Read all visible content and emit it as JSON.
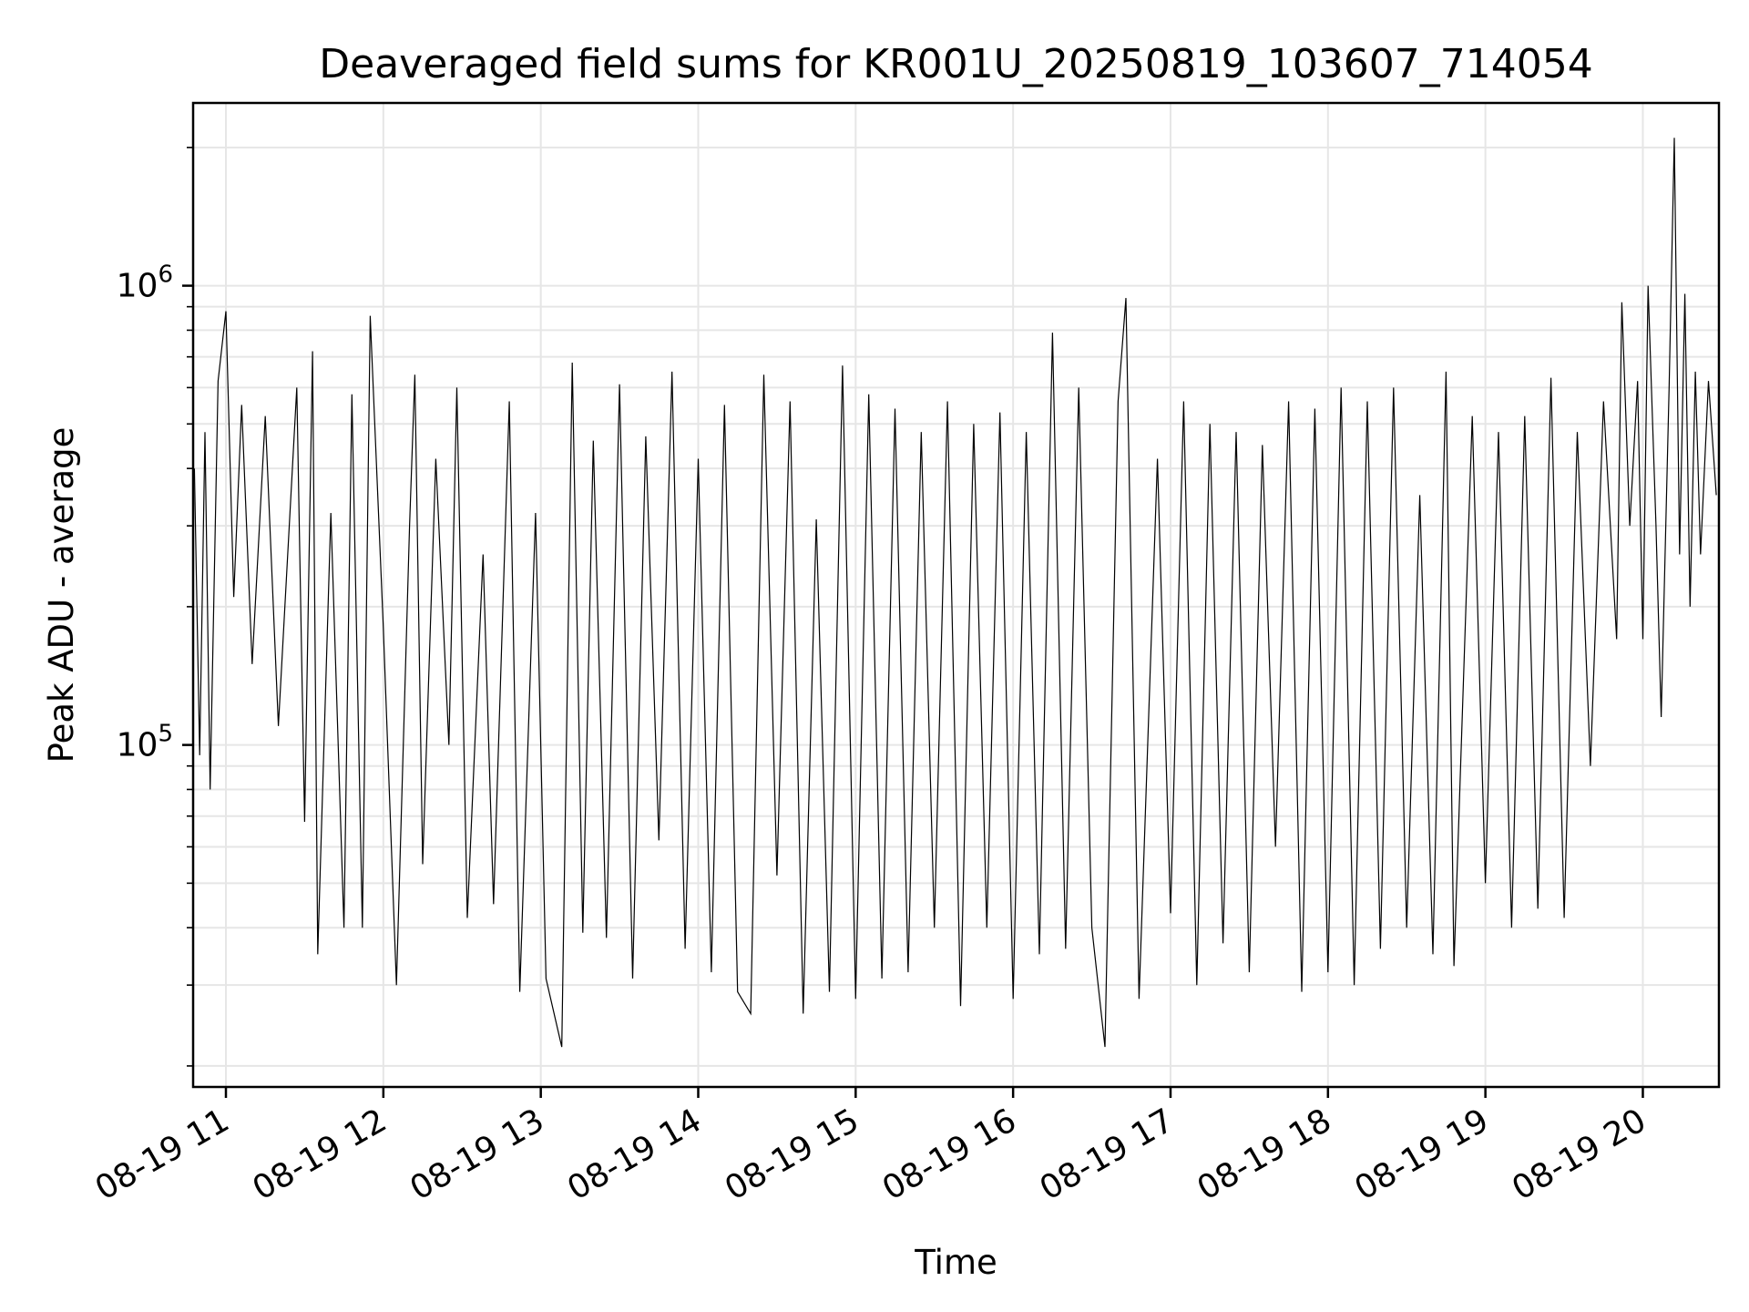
{
  "chart_data": {
    "type": "line",
    "title": "Deaveraged field sums for KR001U_20250819_103607_714054",
    "xlabel": "Time",
    "ylabel": "Peak ADU - average",
    "xscale": "time",
    "yscale": "log",
    "xlim": [
      "2025-08-19T10:47:30",
      "2025-08-19T20:29:00"
    ],
    "ylim": [
      18000,
      2500000
    ],
    "grid": true,
    "legend": "none",
    "line_color": "#000000",
    "x_ticks": [
      {
        "value": "2025-08-19T11:00:00",
        "label": "08-19 11"
      },
      {
        "value": "2025-08-19T12:00:00",
        "label": "08-19 12"
      },
      {
        "value": "2025-08-19T13:00:00",
        "label": "08-19 13"
      },
      {
        "value": "2025-08-19T14:00:00",
        "label": "08-19 14"
      },
      {
        "value": "2025-08-19T15:00:00",
        "label": "08-19 15"
      },
      {
        "value": "2025-08-19T16:00:00",
        "label": "08-19 16"
      },
      {
        "value": "2025-08-19T17:00:00",
        "label": "08-19 17"
      },
      {
        "value": "2025-08-19T18:00:00",
        "label": "08-19 18"
      },
      {
        "value": "2025-08-19T19:00:00",
        "label": "08-19 19"
      },
      {
        "value": "2025-08-19T20:00:00",
        "label": "08-19 20"
      }
    ],
    "y_ticks": [
      {
        "value": 100000,
        "base": "10",
        "exp": "5"
      },
      {
        "value": 1000000,
        "base": "10",
        "exp": "6"
      }
    ],
    "y_minor_ticks": [
      20000,
      30000,
      40000,
      50000,
      60000,
      70000,
      80000,
      90000,
      200000,
      300000,
      400000,
      500000,
      600000,
      700000,
      800000,
      900000,
      2000000
    ],
    "series": [
      {
        "points": [
          [
            "2025-08-19T10:48:00",
            400000
          ],
          [
            "2025-08-19T10:50:00",
            95000
          ],
          [
            "2025-08-19T10:52:00",
            480000
          ],
          [
            "2025-08-19T10:54:00",
            80000
          ],
          [
            "2025-08-19T10:57:00",
            620000
          ],
          [
            "2025-08-19T11:00:00",
            880000
          ],
          [
            "2025-08-19T11:03:00",
            210000
          ],
          [
            "2025-08-19T11:06:00",
            550000
          ],
          [
            "2025-08-19T11:10:00",
            150000
          ],
          [
            "2025-08-19T11:15:00",
            520000
          ],
          [
            "2025-08-19T11:20:00",
            110000
          ],
          [
            "2025-08-19T11:27:00",
            600000
          ],
          [
            "2025-08-19T11:30:00",
            68000
          ],
          [
            "2025-08-19T11:33:00",
            720000
          ],
          [
            "2025-08-19T11:35:00",
            35000
          ],
          [
            "2025-08-19T11:40:00",
            320000
          ],
          [
            "2025-08-19T11:45:00",
            40000
          ],
          [
            "2025-08-19T11:48:00",
            580000
          ],
          [
            "2025-08-19T11:52:00",
            40000
          ],
          [
            "2025-08-19T11:55:00",
            860000
          ],
          [
            "2025-08-19T12:00:00",
            180000
          ],
          [
            "2025-08-19T12:05:00",
            30000
          ],
          [
            "2025-08-19T12:10:00",
            300000
          ],
          [
            "2025-08-19T12:12:00",
            640000
          ],
          [
            "2025-08-19T12:15:00",
            55000
          ],
          [
            "2025-08-19T12:20:00",
            420000
          ],
          [
            "2025-08-19T12:25:00",
            100000
          ],
          [
            "2025-08-19T12:28:00",
            600000
          ],
          [
            "2025-08-19T12:32:00",
            42000
          ],
          [
            "2025-08-19T12:38:00",
            260000
          ],
          [
            "2025-08-19T12:42:00",
            45000
          ],
          [
            "2025-08-19T12:48:00",
            560000
          ],
          [
            "2025-08-19T12:52:00",
            29000
          ],
          [
            "2025-08-19T12:58:00",
            320000
          ],
          [
            "2025-08-19T13:02:00",
            31000
          ],
          [
            "2025-08-19T13:08:00",
            22000
          ],
          [
            "2025-08-19T13:12:00",
            680000
          ],
          [
            "2025-08-19T13:16:00",
            39000
          ],
          [
            "2025-08-19T13:20:00",
            460000
          ],
          [
            "2025-08-19T13:25:00",
            38000
          ],
          [
            "2025-08-19T13:30:00",
            610000
          ],
          [
            "2025-08-19T13:35:00",
            31000
          ],
          [
            "2025-08-19T13:40:00",
            470000
          ],
          [
            "2025-08-19T13:45:00",
            62000
          ],
          [
            "2025-08-19T13:50:00",
            650000
          ],
          [
            "2025-08-19T13:55:00",
            36000
          ],
          [
            "2025-08-19T14:00:00",
            420000
          ],
          [
            "2025-08-19T14:05:00",
            32000
          ],
          [
            "2025-08-19T14:10:00",
            550000
          ],
          [
            "2025-08-19T14:15:00",
            29000
          ],
          [
            "2025-08-19T14:20:00",
            26000
          ],
          [
            "2025-08-19T14:25:00",
            640000
          ],
          [
            "2025-08-19T14:30:00",
            52000
          ],
          [
            "2025-08-19T14:35:00",
            560000
          ],
          [
            "2025-08-19T14:40:00",
            26000
          ],
          [
            "2025-08-19T14:45:00",
            310000
          ],
          [
            "2025-08-19T14:50:00",
            29000
          ],
          [
            "2025-08-19T14:55:00",
            670000
          ],
          [
            "2025-08-19T15:00:00",
            28000
          ],
          [
            "2025-08-19T15:05:00",
            580000
          ],
          [
            "2025-08-19T15:10:00",
            31000
          ],
          [
            "2025-08-19T15:15:00",
            540000
          ],
          [
            "2025-08-19T15:20:00",
            32000
          ],
          [
            "2025-08-19T15:25:00",
            480000
          ],
          [
            "2025-08-19T15:30:00",
            40000
          ],
          [
            "2025-08-19T15:35:00",
            560000
          ],
          [
            "2025-08-19T15:40:00",
            27000
          ],
          [
            "2025-08-19T15:45:00",
            500000
          ],
          [
            "2025-08-19T15:50:00",
            40000
          ],
          [
            "2025-08-19T15:55:00",
            530000
          ],
          [
            "2025-08-19T16:00:00",
            28000
          ],
          [
            "2025-08-19T16:05:00",
            480000
          ],
          [
            "2025-08-19T16:10:00",
            35000
          ],
          [
            "2025-08-19T16:15:00",
            790000
          ],
          [
            "2025-08-19T16:20:00",
            36000
          ],
          [
            "2025-08-19T16:25:00",
            600000
          ],
          [
            "2025-08-19T16:30:00",
            40000
          ],
          [
            "2025-08-19T16:35:00",
            22000
          ],
          [
            "2025-08-19T16:40:00",
            560000
          ],
          [
            "2025-08-19T16:43:00",
            940000
          ],
          [
            "2025-08-19T16:48:00",
            28000
          ],
          [
            "2025-08-19T16:55:00",
            420000
          ],
          [
            "2025-08-19T17:00:00",
            43000
          ],
          [
            "2025-08-19T17:05:00",
            560000
          ],
          [
            "2025-08-19T17:10:00",
            30000
          ],
          [
            "2025-08-19T17:15:00",
            500000
          ],
          [
            "2025-08-19T17:20:00",
            37000
          ],
          [
            "2025-08-19T17:25:00",
            480000
          ],
          [
            "2025-08-19T17:30:00",
            32000
          ],
          [
            "2025-08-19T17:35:00",
            450000
          ],
          [
            "2025-08-19T17:40:00",
            60000
          ],
          [
            "2025-08-19T17:45:00",
            560000
          ],
          [
            "2025-08-19T17:50:00",
            29000
          ],
          [
            "2025-08-19T17:55:00",
            540000
          ],
          [
            "2025-08-19T18:00:00",
            32000
          ],
          [
            "2025-08-19T18:05:00",
            600000
          ],
          [
            "2025-08-19T18:10:00",
            30000
          ],
          [
            "2025-08-19T18:15:00",
            560000
          ],
          [
            "2025-08-19T18:20:00",
            36000
          ],
          [
            "2025-08-19T18:25:00",
            600000
          ],
          [
            "2025-08-19T18:30:00",
            40000
          ],
          [
            "2025-08-19T18:35:00",
            350000
          ],
          [
            "2025-08-19T18:40:00",
            35000
          ],
          [
            "2025-08-19T18:45:00",
            650000
          ],
          [
            "2025-08-19T18:48:00",
            33000
          ],
          [
            "2025-08-19T18:55:00",
            520000
          ],
          [
            "2025-08-19T19:00:00",
            50000
          ],
          [
            "2025-08-19T19:05:00",
            480000
          ],
          [
            "2025-08-19T19:10:00",
            40000
          ],
          [
            "2025-08-19T19:15:00",
            520000
          ],
          [
            "2025-08-19T19:20:00",
            44000
          ],
          [
            "2025-08-19T19:25:00",
            630000
          ],
          [
            "2025-08-19T19:30:00",
            42000
          ],
          [
            "2025-08-19T19:35:00",
            480000
          ],
          [
            "2025-08-19T19:40:00",
            90000
          ],
          [
            "2025-08-19T19:45:00",
            560000
          ],
          [
            "2025-08-19T19:50:00",
            170000
          ],
          [
            "2025-08-19T19:52:00",
            920000
          ],
          [
            "2025-08-19T19:55:00",
            300000
          ],
          [
            "2025-08-19T19:58:00",
            620000
          ],
          [
            "2025-08-19T20:00:00",
            170000
          ],
          [
            "2025-08-19T20:02:00",
            1000000
          ],
          [
            "2025-08-19T20:05:00",
            300000
          ],
          [
            "2025-08-19T20:07:00",
            115000
          ],
          [
            "2025-08-19T20:10:00",
            600000
          ],
          [
            "2025-08-19T20:12:00",
            2100000
          ],
          [
            "2025-08-19T20:14:00",
            260000
          ],
          [
            "2025-08-19T20:16:00",
            960000
          ],
          [
            "2025-08-19T20:18:00",
            200000
          ],
          [
            "2025-08-19T20:20:00",
            650000
          ],
          [
            "2025-08-19T20:22:00",
            260000
          ],
          [
            "2025-08-19T20:25:00",
            620000
          ],
          [
            "2025-08-19T20:28:00",
            350000
          ]
        ]
      }
    ]
  }
}
